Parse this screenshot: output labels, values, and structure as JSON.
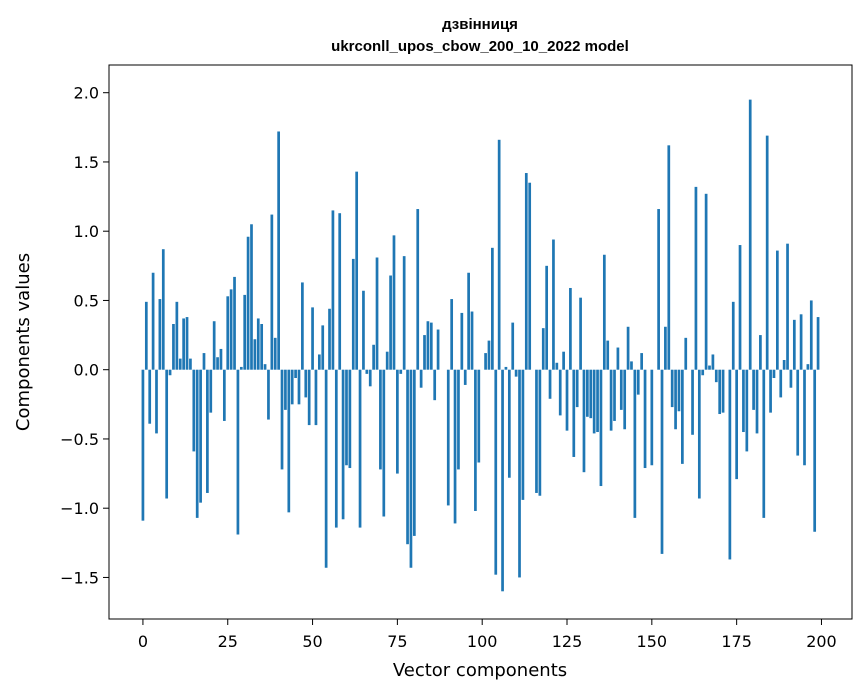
{
  "chart_data": {
    "type": "bar",
    "title": "дзвінниця",
    "subtitle": "ukrconll_upos_cbow_200_10_2022 model",
    "xlabel": "Vector components",
    "ylabel": "Components values",
    "xlim": [
      -10,
      209
    ],
    "ylim": [
      -1.8,
      2.2
    ],
    "xticks": [
      0,
      25,
      50,
      75,
      100,
      125,
      150,
      175,
      200
    ],
    "yticks": [
      -1.5,
      -1.0,
      -0.5,
      0.0,
      0.5,
      1.0,
      1.5,
      2.0
    ],
    "ytick_labels": [
      "−1.5",
      "−1.0",
      "−0.5",
      "0.0",
      "0.5",
      "1.0",
      "1.5",
      "2.0"
    ],
    "grid": false,
    "bar_color": "#1f77b4",
    "x": [
      0,
      1,
      2,
      3,
      4,
      5,
      6,
      7,
      8,
      9,
      10,
      11,
      12,
      13,
      14,
      15,
      16,
      17,
      18,
      19,
      20,
      21,
      22,
      23,
      24,
      25,
      26,
      27,
      28,
      29,
      30,
      31,
      32,
      33,
      34,
      35,
      36,
      37,
      38,
      39,
      40,
      41,
      42,
      43,
      44,
      45,
      46,
      47,
      48,
      49,
      50,
      51,
      52,
      53,
      54,
      55,
      56,
      57,
      58,
      59,
      60,
      61,
      62,
      63,
      64,
      65,
      66,
      67,
      68,
      69,
      70,
      71,
      72,
      73,
      74,
      75,
      76,
      77,
      78,
      79,
      80,
      81,
      82,
      83,
      84,
      85,
      86,
      87,
      88,
      89,
      90,
      91,
      92,
      93,
      94,
      95,
      96,
      97,
      98,
      99,
      100,
      101,
      102,
      103,
      104,
      105,
      106,
      107,
      108,
      109,
      110,
      111,
      112,
      113,
      114,
      115,
      116,
      117,
      118,
      119,
      120,
      121,
      122,
      123,
      124,
      125,
      126,
      127,
      128,
      129,
      130,
      131,
      132,
      133,
      134,
      135,
      136,
      137,
      138,
      139,
      140,
      141,
      142,
      143,
      144,
      145,
      146,
      147,
      148,
      149,
      150,
      151,
      152,
      153,
      154,
      155,
      156,
      157,
      158,
      159,
      160,
      161,
      162,
      163,
      164,
      165,
      166,
      167,
      168,
      169,
      170,
      171,
      172,
      173,
      174,
      175,
      176,
      177,
      178,
      179,
      180,
      181,
      182,
      183,
      184,
      185,
      186,
      187,
      188,
      189,
      190,
      191,
      192,
      193,
      194,
      195,
      196,
      197,
      198,
      199
    ],
    "values": [
      -1.09,
      0.49,
      -0.39,
      0.7,
      -0.46,
      0.51,
      0.87,
      -0.93,
      -0.04,
      0.33,
      0.49,
      0.08,
      0.37,
      0.38,
      0.08,
      -0.59,
      -1.07,
      -0.96,
      0.12,
      -0.89,
      -0.31,
      0.35,
      0.09,
      0.15,
      -0.37,
      0.53,
      0.58,
      0.67,
      -1.19,
      0.02,
      0.54,
      0.96,
      1.05,
      0.22,
      0.37,
      0.33,
      0.04,
      -0.36,
      1.12,
      0.23,
      1.72,
      -0.72,
      -0.29,
      -1.03,
      -0.25,
      -0.06,
      -0.25,
      0.63,
      -0.2,
      -0.4,
      0.45,
      -0.4,
      0.11,
      0.32,
      -1.43,
      0.44,
      1.15,
      -1.14,
      1.13,
      -1.08,
      -0.69,
      -0.71,
      0.8,
      1.43,
      -1.14,
      0.57,
      -0.03,
      -0.12,
      0.18,
      0.81,
      -0.72,
      -1.06,
      0.13,
      0.68,
      0.97,
      -0.75,
      -0.03,
      0.82,
      -1.26,
      -1.43,
      -1.2,
      1.16,
      -0.13,
      0.25,
      0.35,
      0.34,
      -0.22,
      0.29,
      0.0,
      0.0,
      -0.98,
      0.51,
      -1.11,
      -0.72,
      0.41,
      -0.11,
      0.7,
      0.42,
      -1.02,
      -0.67,
      0.0,
      0.12,
      0.21,
      0.88,
      -1.48,
      1.66,
      -1.6,
      0.02,
      -0.78,
      0.34,
      -0.05,
      -1.5,
      -0.94,
      1.42,
      1.35,
      0.0,
      -0.89,
      -0.91,
      0.3,
      0.75,
      -0.21,
      0.94,
      0.05,
      -0.33,
      0.13,
      -0.44,
      0.59,
      -0.63,
      -0.27,
      0.52,
      -0.74,
      -0.34,
      -0.35,
      -0.46,
      -0.45,
      -0.84,
      0.83,
      0.21,
      -0.44,
      -0.37,
      0.16,
      -0.29,
      -0.43,
      0.31,
      0.06,
      -1.07,
      -0.18,
      0.12,
      -0.71,
      0.0,
      -0.69,
      0.0,
      1.16,
      -1.33,
      0.31,
      1.62,
      -0.27,
      -0.43,
      -0.3,
      -0.68,
      0.23,
      0.0,
      -0.47,
      1.32,
      -0.93,
      -0.04,
      1.27,
      0.03,
      0.11,
      -0.09,
      -0.32,
      -0.31,
      0.0,
      -1.37,
      0.49,
      -0.79,
      0.9,
      -0.45,
      -0.59,
      1.95,
      -0.29,
      -0.46,
      0.25,
      -1.07,
      1.69,
      -0.31,
      -0.06,
      0.86,
      -0.2,
      0.07,
      0.91,
      -0.13,
      0.36,
      -0.62,
      0.4,
      -0.69,
      0.04,
      0.5,
      -1.17,
      0.38
    ]
  }
}
